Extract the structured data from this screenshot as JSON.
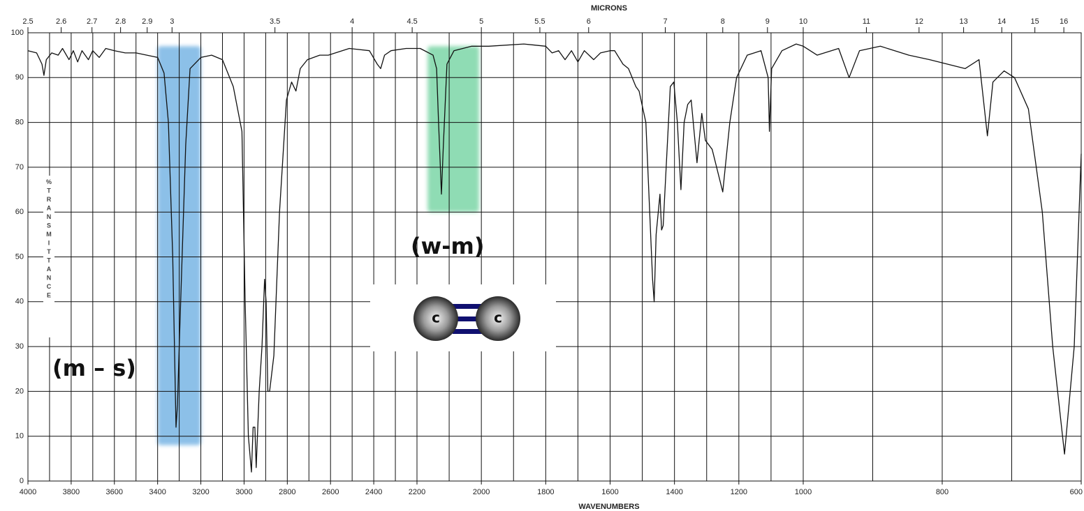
{
  "chart_data": {
    "type": "line",
    "xlabel": "WAVENUMBERS",
    "x2label": "MICRONS",
    "ylabel": "%TRANSMITTANCE",
    "xlim": [
      4000,
      600
    ],
    "x_scale_breaks": [
      2200,
      1000
    ],
    "xticks": [
      4000,
      3800,
      3600,
      3400,
      3200,
      3000,
      2800,
      2600,
      2400,
      2200,
      2000,
      1800,
      1600,
      1400,
      1200,
      1000,
      800,
      600
    ],
    "xgrid_step": 100,
    "x2ticks": [
      2.5,
      2.6,
      2.7,
      2.8,
      2.9,
      3,
      3.5,
      4,
      4.5,
      5,
      5.5,
      6,
      7,
      8,
      9,
      10,
      11,
      12,
      13,
      14,
      15,
      16
    ],
    "ylim": [
      0,
      100
    ],
    "yticks": [
      0,
      10,
      20,
      30,
      40,
      50,
      60,
      70,
      80,
      90,
      100
    ],
    "grid": true,
    "color": "#111111",
    "x": [
      4000,
      3960,
      3935,
      3926,
      3915,
      3890,
      3860,
      3840,
      3810,
      3790,
      3770,
      3750,
      3720,
      3700,
      3670,
      3640,
      3600,
      3550,
      3500,
      3450,
      3400,
      3370,
      3350,
      3330,
      3315,
      3308,
      3300,
      3290,
      3270,
      3250,
      3200,
      3150,
      3100,
      3050,
      3010,
      2995,
      2980,
      2966,
      2958,
      2950,
      2944,
      2930,
      2917,
      2905,
      2898,
      2890,
      2882,
      2862,
      2836,
      2804,
      2780,
      2760,
      2740,
      2707,
      2650,
      2610,
      2513,
      2420,
      2384,
      2368,
      2350,
      2320,
      2250,
      2190,
      2150,
      2139,
      2133,
      2124,
      2118,
      2107,
      2085,
      2030,
      1977,
      1868,
      1800,
      1780,
      1760,
      1740,
      1720,
      1700,
      1680,
      1651,
      1630,
      1600,
      1586,
      1560,
      1543,
      1520,
      1510,
      1489,
      1468,
      1463,
      1457,
      1445,
      1440,
      1435,
      1413,
      1402,
      1391,
      1380,
      1370,
      1359,
      1348,
      1330,
      1315,
      1304,
      1283,
      1250,
      1228,
      1207,
      1174,
      1131,
      1109,
      1105,
      1098,
      1066,
      1022,
      1000,
      980,
      949,
      934,
      919,
      889,
      848,
      818,
      767,
      747,
      735,
      727,
      711,
      696,
      676,
      656,
      641,
      624,
      610,
      600
    ],
    "values": [
      96,
      95.5,
      93,
      90.5,
      94,
      95.5,
      95,
      96.5,
      94,
      96,
      93.5,
      96,
      94,
      96,
      94.5,
      96.5,
      96,
      95.5,
      95.5,
      95,
      94.5,
      91,
      80,
      50,
      12,
      17,
      30,
      45,
      75,
      92,
      94.5,
      95,
      94,
      88,
      78,
      40,
      10,
      2,
      12,
      12,
      3,
      20,
      30,
      45,
      40,
      20,
      20,
      28,
      60,
      85,
      89,
      87,
      92,
      94,
      95,
      95,
      96.5,
      96,
      93,
      92,
      95,
      96,
      96.5,
      96.5,
      95,
      92,
      80,
      64,
      75,
      93,
      96,
      97,
      97,
      97.5,
      97,
      95.5,
      96,
      94,
      96,
      93.5,
      96,
      94,
      95.5,
      96,
      96,
      93,
      92,
      88,
      87,
      80,
      45,
      40,
      55,
      64,
      56,
      57,
      88,
      89,
      80,
      65,
      80,
      84,
      85,
      71,
      82,
      76,
      74,
      64.5,
      80,
      90,
      95,
      96,
      90,
      78,
      92,
      96,
      97.5,
      97,
      95,
      96.5,
      90,
      96,
      97,
      95,
      94,
      92,
      94,
      77,
      89,
      91.5,
      90,
      83,
      60,
      30,
      6,
      30,
      73
    ],
    "highlights": [
      {
        "x": [
          3400,
          3200
        ],
        "y": [
          8,
          97
        ],
        "color": "#8cc0e8"
      },
      {
        "x": [
          2167,
          2007
        ],
        "y": [
          60,
          97
        ],
        "color": "#8fdcb4"
      }
    ],
    "annotations": [
      "(m – s)",
      "(w-m)"
    ]
  },
  "molecule": {
    "atoms": [
      "c",
      "c"
    ]
  }
}
